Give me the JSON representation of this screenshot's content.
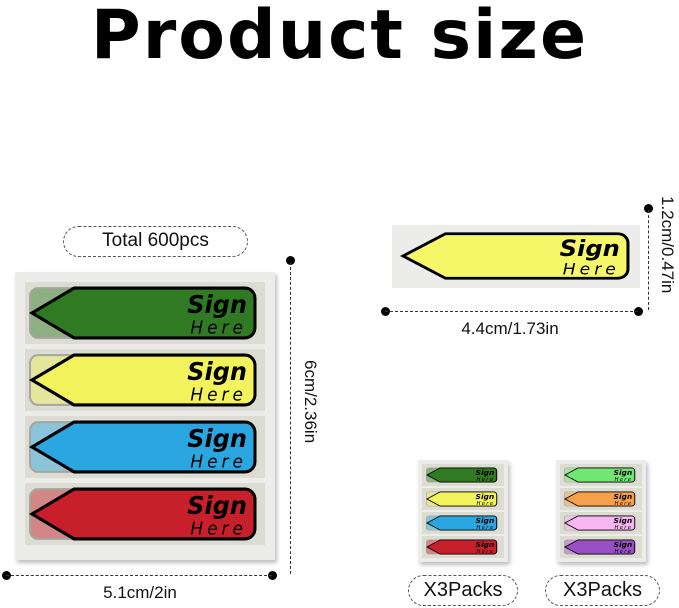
{
  "title": "Product size",
  "total_label": "Total 600pcs",
  "flag_text": {
    "line1": "Sign",
    "line2": "Here"
  },
  "dimensions": {
    "sheet_height": "6cm/2.36in",
    "sheet_width": "5.1cm/2in",
    "flag_height": "1.2cm/0.47in",
    "flag_width": "4.4cm/1.73in"
  },
  "pack_labels": [
    "X3Packs",
    "X3Packs"
  ],
  "colors": {
    "main_sheet": [
      "#2f7a22",
      "#f2f25c",
      "#2ba6e0",
      "#c8202a"
    ],
    "single_flag": "#f7f76a",
    "pack1": [
      "#2f7a22",
      "#f2f25c",
      "#2ba6e0",
      "#c8202a"
    ],
    "pack2": [
      "#72e672",
      "#f7a04c",
      "#f8b6f4",
      "#9a4fc4"
    ]
  }
}
